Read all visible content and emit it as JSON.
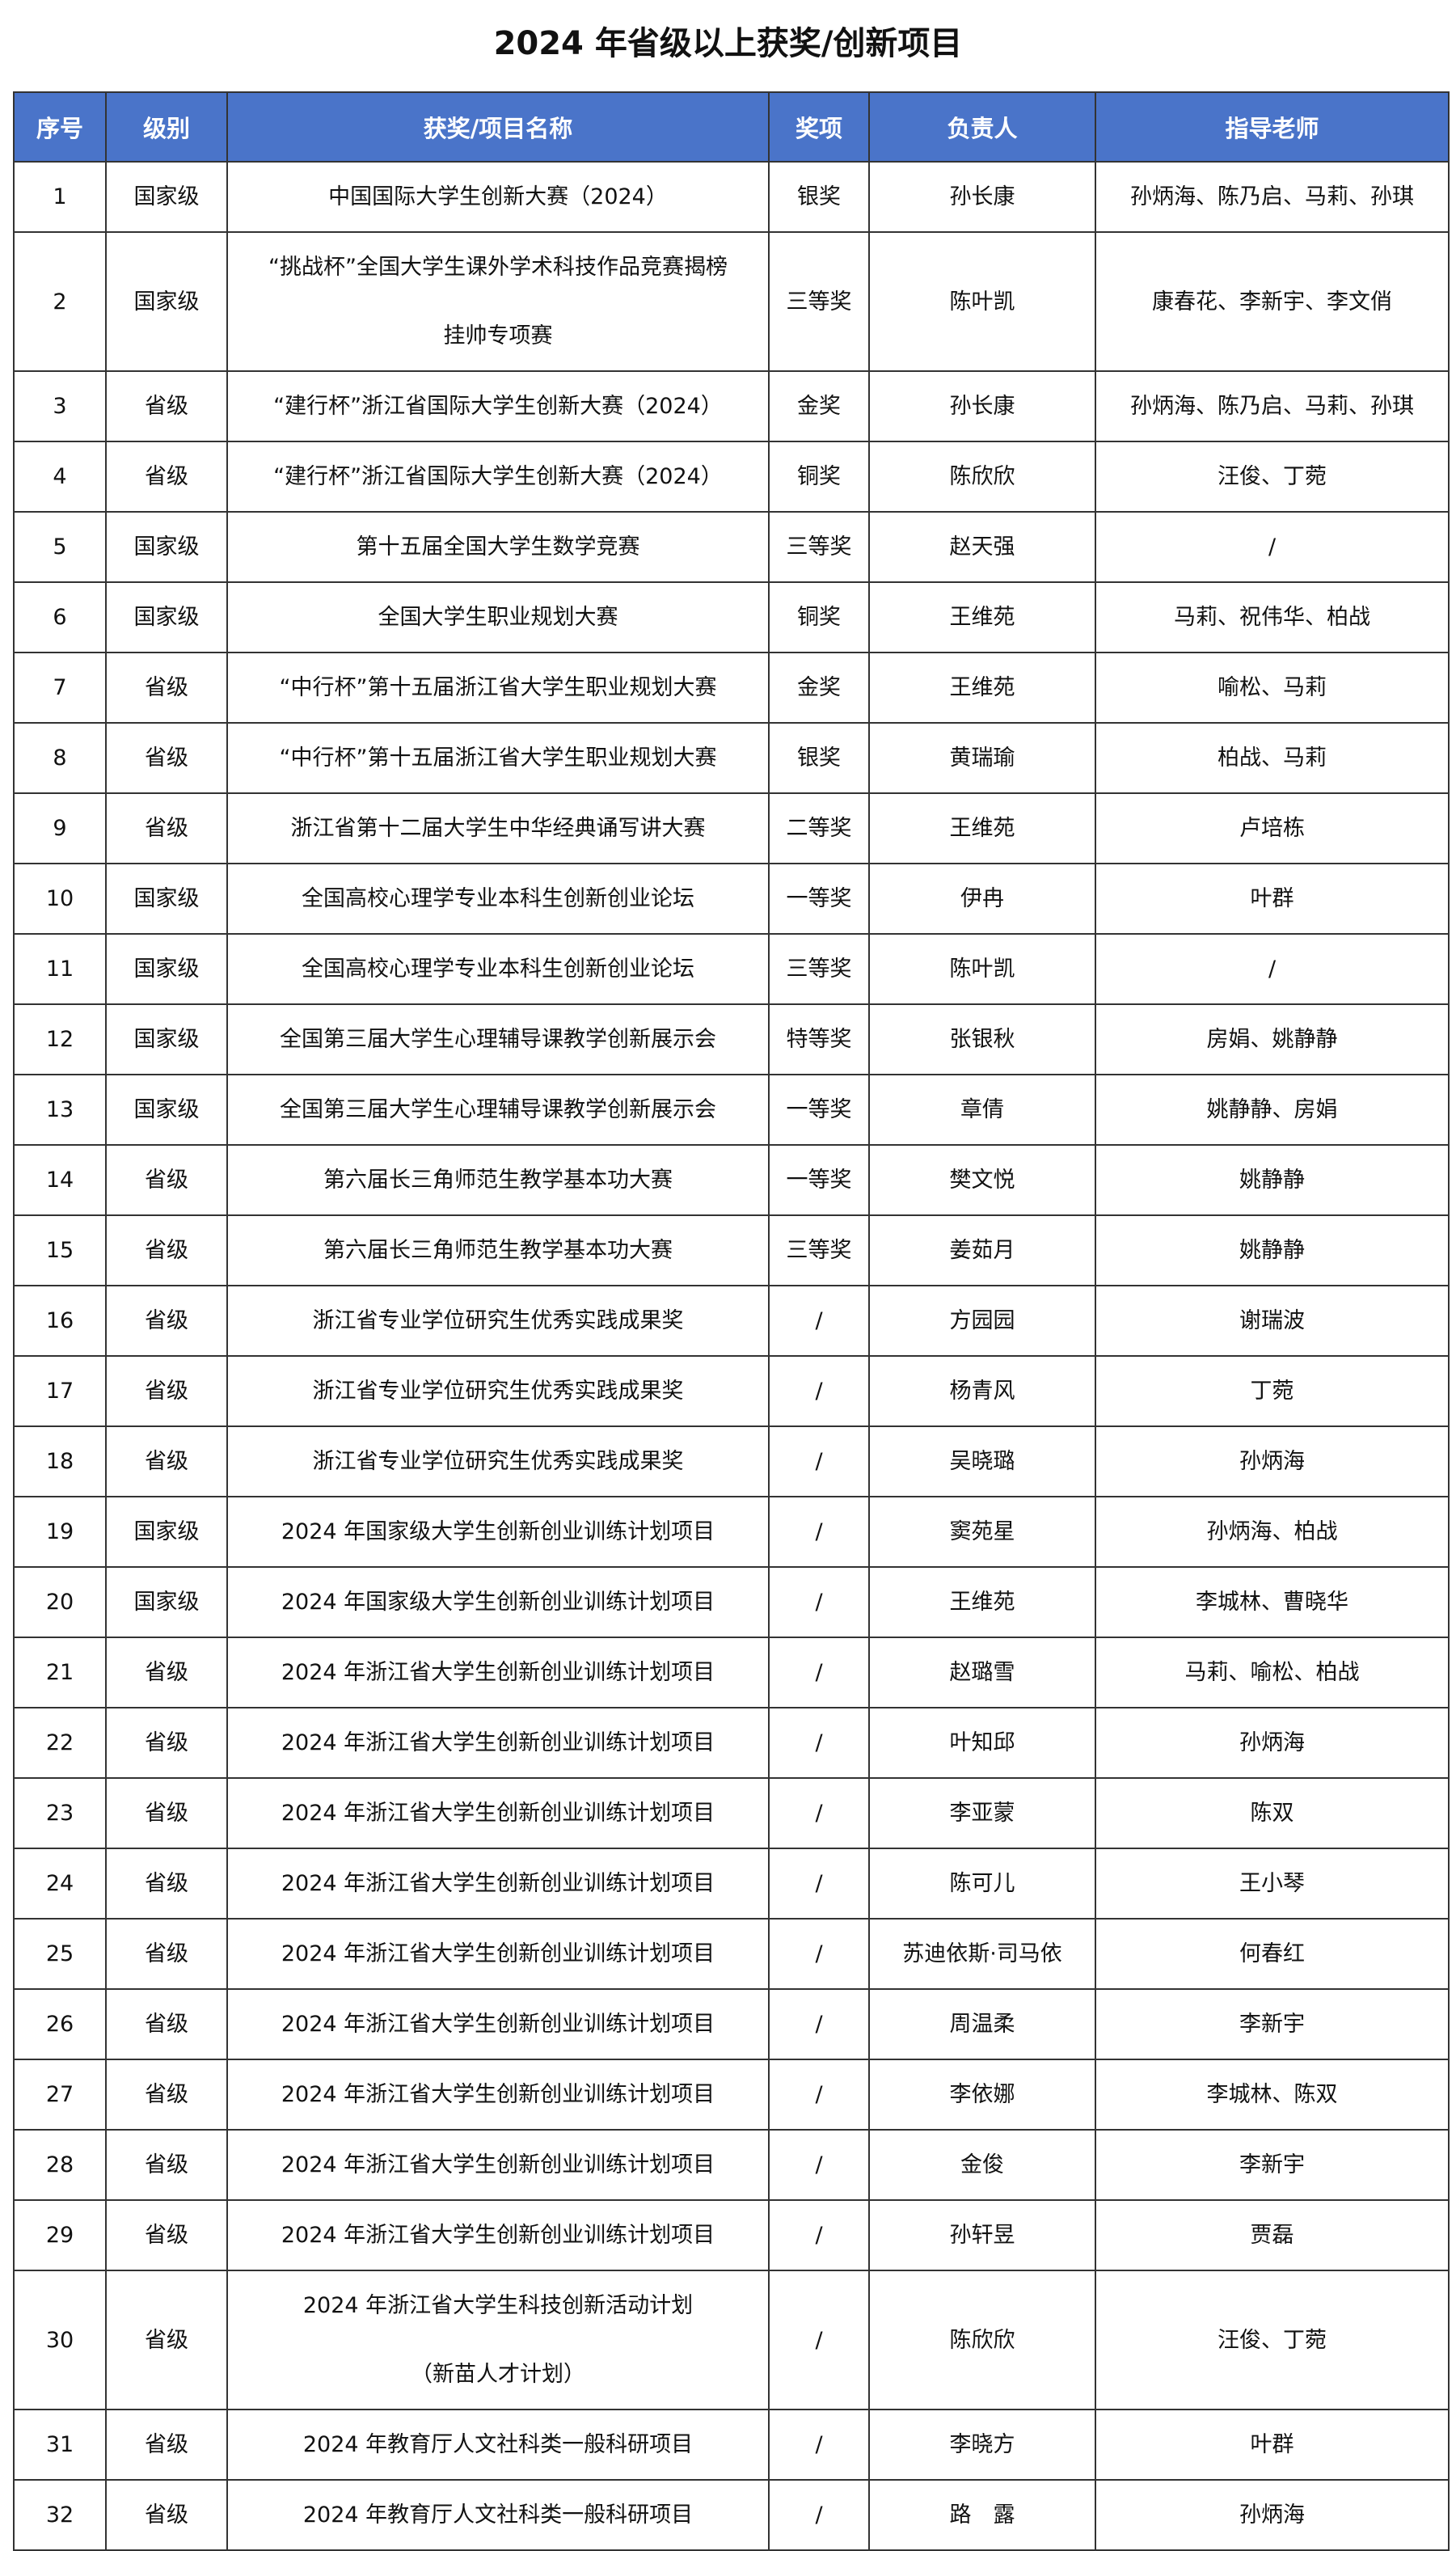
{
  "title": "2024 年省级以上获奖/创新项目",
  "colors": {
    "header_bg": "#4a74c9",
    "header_text": "#ffffff"
  },
  "columns": [
    "序号",
    "级别",
    "获奖/项目名称",
    "奖项",
    "负责人",
    "指导老师"
  ],
  "rows": [
    [
      "1",
      "国家级",
      "中国国际大学生创新大赛（2024）",
      "银奖",
      "孙长康",
      "孙炳海、陈乃启、马莉、孙琪"
    ],
    [
      "2",
      "国家级",
      "“挑战杯”全国大学生课外学术科技作品竞赛揭榜\n挂帅专项赛",
      "三等奖",
      "陈叶凯",
      "康春花、李新宇、李文俏"
    ],
    [
      "3",
      "省级",
      "“建行杯”浙江省国际大学生创新大赛（2024）",
      "金奖",
      "孙长康",
      "孙炳海、陈乃启、马莉、孙琪"
    ],
    [
      "4",
      "省级",
      "“建行杯”浙江省国际大学生创新大赛（2024）",
      "铜奖",
      "陈欣欣",
      "汪俊、丁菀"
    ],
    [
      "5",
      "国家级",
      "第十五届全国大学生数学竞赛",
      "三等奖",
      "赵天强",
      "/"
    ],
    [
      "6",
      "国家级",
      "全国大学生职业规划大赛",
      "铜奖",
      "王维苑",
      "马莉、祝伟华、柏战"
    ],
    [
      "7",
      "省级",
      "“中行杯”第十五届浙江省大学生职业规划大赛",
      "金奖",
      "王维苑",
      "喻松、马莉"
    ],
    [
      "8",
      "省级",
      "“中行杯”第十五届浙江省大学生职业规划大赛",
      "银奖",
      "黄瑞瑜",
      "柏战、马莉"
    ],
    [
      "9",
      "省级",
      "浙江省第十二届大学生中华经典诵写讲大赛",
      "二等奖",
      "王维苑",
      "卢培栋"
    ],
    [
      "10",
      "国家级",
      "全国高校心理学专业本科生创新创业论坛",
      "一等奖",
      "伊冉",
      "叶群"
    ],
    [
      "11",
      "国家级",
      "全国高校心理学专业本科生创新创业论坛",
      "三等奖",
      "陈叶凯",
      "/"
    ],
    [
      "12",
      "国家级",
      "全国第三届大学生心理辅导课教学创新展示会",
      "特等奖",
      "张银秋",
      "房娟、姚静静"
    ],
    [
      "13",
      "国家级",
      "全国第三届大学生心理辅导课教学创新展示会",
      "一等奖",
      "章倩",
      "姚静静、房娟"
    ],
    [
      "14",
      "省级",
      "第六届长三角师范生教学基本功大赛",
      "一等奖",
      "樊文悦",
      "姚静静"
    ],
    [
      "15",
      "省级",
      "第六届长三角师范生教学基本功大赛",
      "三等奖",
      "姜茹月",
      "姚静静"
    ],
    [
      "16",
      "省级",
      "浙江省专业学位研究生优秀实践成果奖",
      "/",
      "方园园",
      "谢瑞波"
    ],
    [
      "17",
      "省级",
      "浙江省专业学位研究生优秀实践成果奖",
      "/",
      "杨青风",
      "丁菀"
    ],
    [
      "18",
      "省级",
      "浙江省专业学位研究生优秀实践成果奖",
      "/",
      "吴晓璐",
      "孙炳海"
    ],
    [
      "19",
      "国家级",
      "2024 年国家级大学生创新创业训练计划项目",
      "/",
      "窦苑星",
      "孙炳海、柏战"
    ],
    [
      "20",
      "国家级",
      "2024 年国家级大学生创新创业训练计划项目",
      "/",
      "王维苑",
      "李城林、曹晓华"
    ],
    [
      "21",
      "省级",
      "2024 年浙江省大学生创新创业训练计划项目",
      "/",
      "赵璐雪",
      "马莉、喻松、柏战"
    ],
    [
      "22",
      "省级",
      "2024 年浙江省大学生创新创业训练计划项目",
      "/",
      "叶知邱",
      "孙炳海"
    ],
    [
      "23",
      "省级",
      "2024 年浙江省大学生创新创业训练计划项目",
      "/",
      "李亚蒙",
      "陈双"
    ],
    [
      "24",
      "省级",
      "2024 年浙江省大学生创新创业训练计划项目",
      "/",
      "陈可儿",
      "王小琴"
    ],
    [
      "25",
      "省级",
      "2024 年浙江省大学生创新创业训练计划项目",
      "/",
      "苏迪依斯·司马依",
      "何春红"
    ],
    [
      "26",
      "省级",
      "2024 年浙江省大学生创新创业训练计划项目",
      "/",
      "周温柔",
      "李新宇"
    ],
    [
      "27",
      "省级",
      "2024 年浙江省大学生创新创业训练计划项目",
      "/",
      "李依娜",
      "李城林、陈双"
    ],
    [
      "28",
      "省级",
      "2024 年浙江省大学生创新创业训练计划项目",
      "/",
      "金俊",
      "李新宇"
    ],
    [
      "29",
      "省级",
      "2024 年浙江省大学生创新创业训练计划项目",
      "/",
      "孙轩昱",
      "贾磊"
    ],
    [
      "30",
      "省级",
      "2024 年浙江省大学生科技创新活动计划\n（新苗人才计划）",
      "/",
      "陈欣欣",
      "汪俊、丁菀"
    ],
    [
      "31",
      "省级",
      "2024 年教育厅人文社科类一般科研项目",
      "/",
      "李晓方",
      "叶群"
    ],
    [
      "32",
      "省级",
      "2024 年教育厅人文社科类一般科研项目",
      "/",
      "路　露",
      "孙炳海"
    ]
  ]
}
